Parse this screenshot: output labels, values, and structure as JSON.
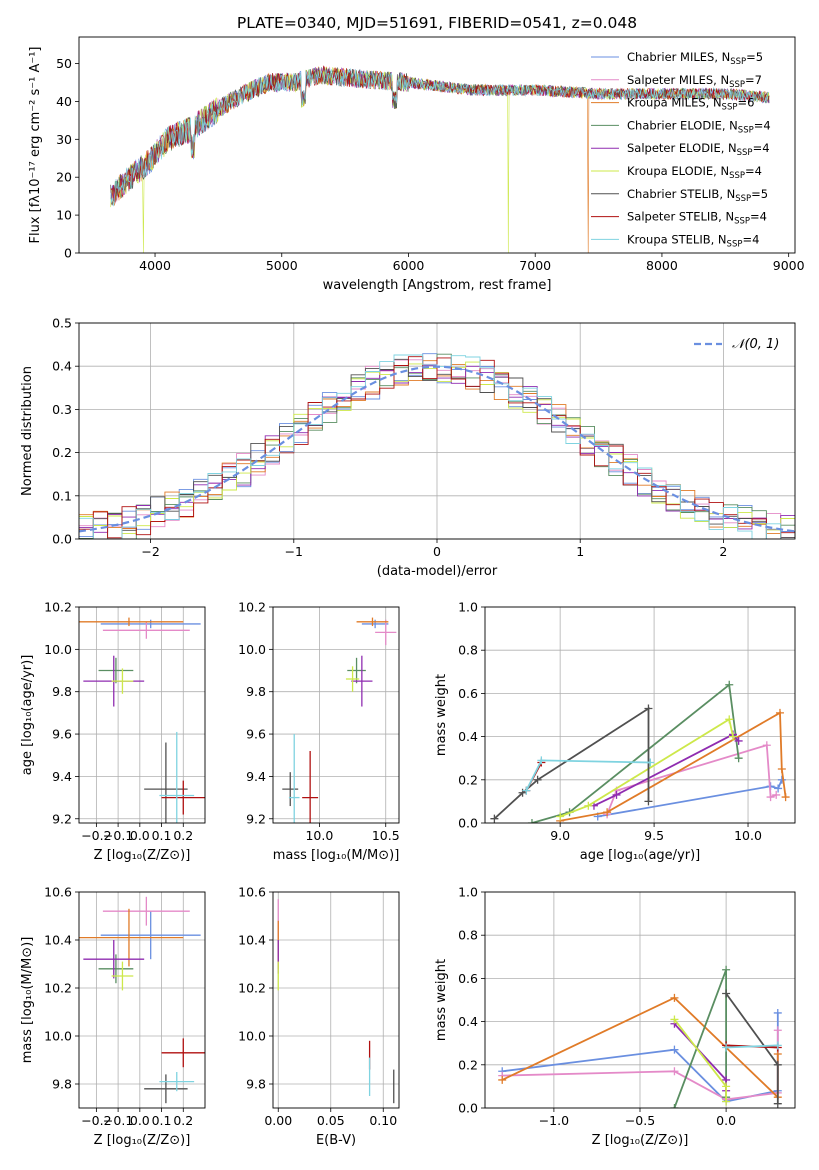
{
  "figure_title": "PLATE=0340, MJD=51691, FIBERID=0541, z=0.048",
  "colors": {
    "chabrier_miles": "#6a8fe0",
    "salpeter_miles": "#e48ac8",
    "kroupa_miles": "#e07b28",
    "chabrier_elodie": "#5a8e62",
    "salpeter_elodie": "#8f2cb0",
    "kroupa_elodie": "#cde84a",
    "chabrier_stelib": "#505050",
    "salpeter_stelib": "#b01010",
    "kroupa_stelib": "#7fd3e0"
  },
  "legend_spectrum": {
    "entries": [
      {
        "pre": "Chabrier MILES, N",
        "sub": "SSP",
        "post": "=5",
        "color_key": "chabrier_miles"
      },
      {
        "pre": "Salpeter MILES, N",
        "sub": "SSP",
        "post": "=7",
        "color_key": "salpeter_miles"
      },
      {
        "pre": "Kroupa MILES, N",
        "sub": "SSP",
        "post": "=6",
        "color_key": "kroupa_miles"
      },
      {
        "pre": "Chabrier ELODIE, N",
        "sub": "SSP",
        "post": "=4",
        "color_key": "chabrier_elodie"
      },
      {
        "pre": "Salpeter ELODIE, N",
        "sub": "SSP",
        "post": "=4",
        "color_key": "salpeter_elodie"
      },
      {
        "pre": "Kroupa ELODIE, N",
        "sub": "SSP",
        "post": "=4",
        "color_key": "kroupa_elodie"
      },
      {
        "pre": "Chabrier STELIB, N",
        "sub": "SSP",
        "post": "=5",
        "color_key": "chabrier_stelib"
      },
      {
        "pre": "Salpeter STELIB, N",
        "sub": "SSP",
        "post": "=4",
        "color_key": "salpeter_stelib"
      },
      {
        "pre": "Kroupa STELIB, N",
        "sub": "SSP",
        "post": "=4",
        "color_key": "kroupa_stelib"
      }
    ]
  },
  "legend_hist": {
    "label": "𝒩(0, 1)"
  },
  "chart_data": [
    {
      "id": "spectrum",
      "type": "line",
      "xlabel": "wavelength [Angstrom, rest frame]",
      "ylabel": "Flux [fλ10⁻¹⁷ erg cm⁻² s⁻¹ A⁻¹]",
      "xlim": [
        3400,
        9050
      ],
      "ylim": [
        0,
        57
      ],
      "xticks": [
        4000,
        5000,
        6000,
        7000,
        8000,
        9000
      ],
      "yticks": [
        0,
        10,
        20,
        30,
        40,
        50
      ],
      "grid": false,
      "legend": "right",
      "data_range": [
        3650,
        8850
      ],
      "continuum_wavelength": [
        3650,
        3800,
        3950,
        4100,
        4300,
        4500,
        4700,
        4900,
        5100,
        5300,
        5600,
        6000,
        6500,
        7000,
        7500,
        8000,
        8500,
        8850
      ],
      "continuum_flux": [
        15,
        20,
        24,
        30,
        33,
        38,
        42,
        45,
        45,
        47,
        46,
        45,
        43,
        43,
        42,
        42,
        42,
        41
      ],
      "spikes": [
        {
          "series": "kroupa_elodie",
          "wavelength": 3910,
          "flux": 0
        },
        {
          "series": "kroupa_elodie",
          "wavelength": 6790,
          "flux": 0
        },
        {
          "series": "kroupa_miles",
          "wavelength": 7420,
          "flux": 0
        }
      ]
    },
    {
      "id": "residuals",
      "type": "line",
      "xlabel": "(data-model)/error",
      "ylabel": "Normed distribution",
      "xlim": [
        -2.5,
        2.5
      ],
      "ylim": [
        0,
        0.5
      ],
      "xticks": [
        -2,
        -1,
        0,
        1,
        2
      ],
      "yticks": [
        0.0,
        0.1,
        0.2,
        0.3,
        0.4,
        0.5
      ],
      "grid": true,
      "legend": "top-right",
      "bin_width": 0.1,
      "reference_curve": "normal(0,1)"
    },
    {
      "id": "age_vs_Z",
      "type": "scatter",
      "xlabel": "Z [log₁₀(Z/Z⊙)]",
      "ylabel": "age  [log₁₀(age/yr)]",
      "xlim": [
        -0.28,
        0.3
      ],
      "ylim": [
        9.18,
        10.2
      ],
      "xticks": [
        -0.2,
        -0.1,
        0.0,
        0.1,
        0.2
      ],
      "yticks": [
        9.2,
        9.4,
        9.6,
        9.8,
        10.0,
        10.2
      ],
      "grid": true,
      "points": [
        {
          "series": "chabrier_miles",
          "x": 0.05,
          "y": 10.12,
          "xerr": 0.23,
          "yerr": 0.02
        },
        {
          "series": "salpeter_miles",
          "x": 0.03,
          "y": 10.09,
          "xerr": 0.2,
          "yerr": 0.04
        },
        {
          "series": "kroupa_miles",
          "x": -0.05,
          "y": 10.13,
          "xerr": 0.25,
          "yerr": 0.02
        },
        {
          "series": "chabrier_elodie",
          "x": -0.11,
          "y": 9.9,
          "xerr": 0.08,
          "yerr": 0.06
        },
        {
          "series": "salpeter_elodie",
          "x": -0.12,
          "y": 9.85,
          "xerr": 0.14,
          "yerr": 0.12
        },
        {
          "series": "kroupa_elodie",
          "x": -0.08,
          "y": 9.85,
          "xerr": 0.05,
          "yerr": 0.06
        },
        {
          "series": "chabrier_stelib",
          "x": 0.12,
          "y": 9.34,
          "xerr": 0.1,
          "yerr": 0.22
        },
        {
          "series": "salpeter_stelib",
          "x": 0.2,
          "y": 9.3,
          "xerr": 0.1,
          "yerr": 0.08
        },
        {
          "series": "kroupa_stelib",
          "x": 0.17,
          "y": 9.31,
          "xerr": 0.08,
          "yerr": 0.3
        }
      ]
    },
    {
      "id": "age_vs_mass",
      "type": "scatter",
      "xlabel": "mass [log₁₀(M/M⊙)]",
      "ylabel": "",
      "xlim": [
        9.65,
        10.6
      ],
      "ylim": [
        9.18,
        10.2
      ],
      "xticks": [
        10.0,
        10.5
      ],
      "yticks": [
        9.2,
        9.4,
        9.6,
        9.8,
        10.0,
        10.2
      ],
      "grid": true,
      "points": [
        {
          "series": "chabrier_miles",
          "x": 10.42,
          "y": 10.12,
          "xerr": 0.1,
          "yerr": 0.02
        },
        {
          "series": "salpeter_miles",
          "x": 10.5,
          "y": 10.08,
          "xerr": 0.08,
          "yerr": 0.06
        },
        {
          "series": "kroupa_miles",
          "x": 10.4,
          "y": 10.13,
          "xerr": 0.12,
          "yerr": 0.02
        },
        {
          "series": "chabrier_elodie",
          "x": 10.28,
          "y": 9.9,
          "xerr": 0.07,
          "yerr": 0.06
        },
        {
          "series": "salpeter_elodie",
          "x": 10.32,
          "y": 9.85,
          "xerr": 0.08,
          "yerr": 0.12
        },
        {
          "series": "kroupa_elodie",
          "x": 10.25,
          "y": 9.86,
          "xerr": 0.05,
          "yerr": 0.06
        },
        {
          "series": "chabrier_stelib",
          "x": 9.78,
          "y": 9.34,
          "xerr": 0.06,
          "yerr": 0.08
        },
        {
          "series": "salpeter_stelib",
          "x": 9.93,
          "y": 9.3,
          "xerr": 0.06,
          "yerr": 0.22
        },
        {
          "series": "kroupa_stelib",
          "x": 9.81,
          "y": 9.3,
          "xerr": 0.04,
          "yerr": 0.3
        }
      ]
    },
    {
      "id": "weight_vs_age",
      "type": "line",
      "xlabel": "age  [log₁₀(age/yr)]",
      "ylabel": "mass weight",
      "xlim": [
        8.6,
        10.25
      ],
      "ylim": [
        0,
        1
      ],
      "xticks": [
        9.0,
        9.5,
        10.0
      ],
      "yticks": [
        0.0,
        0.2,
        0.4,
        0.6,
        0.8,
        1.0
      ],
      "grid": true,
      "series": [
        {
          "key": "chabrier_miles",
          "x": [
            9.2,
            10.12,
            10.16,
            10.18
          ],
          "y": [
            0.03,
            0.17,
            0.16,
            0.2
          ]
        },
        {
          "key": "salpeter_miles",
          "x": [
            9.25,
            9.3,
            10.1,
            10.12,
            10.15
          ],
          "y": [
            0.04,
            0.15,
            0.36,
            0.12,
            0.13
          ]
        },
        {
          "key": "kroupa_miles",
          "x": [
            9.0,
            9.25,
            10.17,
            10.18,
            10.2
          ],
          "y": [
            0.01,
            0.05,
            0.51,
            0.25,
            0.12
          ]
        },
        {
          "key": "chabrier_elodie",
          "x": [
            8.85,
            9.05,
            9.9,
            9.95
          ],
          "y": [
            0.0,
            0.05,
            0.64,
            0.3
          ]
        },
        {
          "key": "salpeter_elodie",
          "x": [
            9.18,
            9.3,
            9.92,
            9.95
          ],
          "y": [
            0.08,
            0.13,
            0.41,
            0.38
          ]
        },
        {
          "key": "kroupa_elodie",
          "x": [
            9.0,
            9.15,
            9.9,
            9.92
          ],
          "y": [
            0.03,
            0.08,
            0.48,
            0.4
          ]
        },
        {
          "key": "chabrier_stelib",
          "x": [
            8.65,
            8.8,
            8.88,
            9.47,
            9.47
          ],
          "y": [
            0.02,
            0.14,
            0.2,
            0.53,
            0.1
          ]
        },
        {
          "key": "salpeter_stelib",
          "x": [
            8.82,
            8.9
          ],
          "y": [
            0.15,
            0.28
          ]
        },
        {
          "key": "kroupa_stelib",
          "x": [
            8.82,
            8.9,
            9.48
          ],
          "y": [
            0.15,
            0.29,
            0.28
          ]
        }
      ]
    },
    {
      "id": "mass_vs_Z",
      "type": "scatter",
      "xlabel": "Z [log₁₀(Z/Z⊙)]",
      "ylabel": "mass [log₁₀(M/M⊙)]",
      "xlim": [
        -0.28,
        0.3
      ],
      "ylim": [
        9.7,
        10.6
      ],
      "xticks": [
        -0.2,
        -0.1,
        0.0,
        0.1,
        0.2
      ],
      "yticks": [
        9.8,
        10.0,
        10.2,
        10.4,
        10.6
      ],
      "grid": true,
      "points": [
        {
          "series": "chabrier_miles",
          "x": 0.05,
          "y": 10.42,
          "xerr": 0.23,
          "yerr": 0.1
        },
        {
          "series": "salpeter_miles",
          "x": 0.03,
          "y": 10.52,
          "xerr": 0.2,
          "yerr": 0.06
        },
        {
          "series": "kroupa_miles",
          "x": -0.05,
          "y": 10.41,
          "xerr": 0.25,
          "yerr": 0.12
        },
        {
          "series": "chabrier_elodie",
          "x": -0.11,
          "y": 10.28,
          "xerr": 0.08,
          "yerr": 0.06
        },
        {
          "series": "salpeter_elodie",
          "x": -0.12,
          "y": 10.32,
          "xerr": 0.14,
          "yerr": 0.08
        },
        {
          "series": "kroupa_elodie",
          "x": -0.08,
          "y": 10.25,
          "xerr": 0.05,
          "yerr": 0.06
        },
        {
          "series": "chabrier_stelib",
          "x": 0.12,
          "y": 9.78,
          "xerr": 0.1,
          "yerr": 0.06
        },
        {
          "series": "salpeter_stelib",
          "x": 0.2,
          "y": 9.93,
          "xerr": 0.1,
          "yerr": 0.06
        },
        {
          "series": "kroupa_stelib",
          "x": 0.17,
          "y": 9.81,
          "xerr": 0.08,
          "yerr": 0.04
        }
      ]
    },
    {
      "id": "mass_vs_ebv",
      "type": "scatter",
      "xlabel": "E(B-V)",
      "ylabel": "",
      "xlim": [
        -0.005,
        0.115
      ],
      "ylim": [
        9.7,
        10.6
      ],
      "xticks": [
        0.0,
        0.05,
        0.1
      ],
      "yticks": [
        9.8,
        10.0,
        10.2,
        10.4,
        10.6
      ],
      "grid": true,
      "points": [
        {
          "series": "salpeter_miles",
          "x": 0.0,
          "y": 10.45,
          "xerr": 0,
          "yerr": 0.12
        },
        {
          "series": "kroupa_miles",
          "x": 0.0,
          "y": 10.38,
          "xerr": 0,
          "yerr": 0.1
        },
        {
          "series": "salpeter_elodie",
          "x": 0.0,
          "y": 10.33,
          "xerr": 0,
          "yerr": 0.07
        },
        {
          "series": "kroupa_elodie",
          "x": 0.0,
          "y": 10.25,
          "xerr": 0,
          "yerr": 0.06
        },
        {
          "series": "salpeter_stelib",
          "x": 0.087,
          "y": 9.92,
          "xerr": 0,
          "yerr": 0.06
        },
        {
          "series": "kroupa_stelib",
          "x": 0.087,
          "y": 9.83,
          "xerr": 0,
          "yerr": 0.08
        },
        {
          "series": "chabrier_stelib",
          "x": 0.11,
          "y": 9.79,
          "xerr": 0,
          "yerr": 0.07
        }
      ]
    },
    {
      "id": "weight_vs_Z",
      "type": "line",
      "xlabel": "Z [log₁₀(Z/Z⊙)]",
      "ylabel": "mass weight",
      "xlim": [
        -1.4,
        0.4
      ],
      "ylim": [
        0,
        1
      ],
      "xticks": [
        -1.0,
        -0.5,
        0.0
      ],
      "yticks": [
        0.0,
        0.2,
        0.4,
        0.6,
        0.8,
        1.0
      ],
      "grid": true,
      "series": [
        {
          "key": "chabrier_miles",
          "x": [
            -1.3,
            -0.3,
            0.0,
            0.3,
            0.3
          ],
          "y": [
            0.17,
            0.27,
            0.03,
            0.08,
            0.44
          ]
        },
        {
          "key": "salpeter_miles",
          "x": [
            -1.3,
            -0.3,
            0.0,
            0.3,
            0.3
          ],
          "y": [
            0.15,
            0.17,
            0.04,
            0.07,
            0.36
          ]
        },
        {
          "key": "kroupa_miles",
          "x": [
            -1.3,
            -0.3,
            0.3,
            0.3
          ],
          "y": [
            0.13,
            0.51,
            0.05,
            0.25
          ]
        },
        {
          "key": "chabrier_elodie",
          "x": [
            -0.3,
            0.0,
            0.0
          ],
          "y": [
            0.0,
            0.64,
            0.05
          ]
        },
        {
          "key": "salpeter_elodie",
          "x": [
            -0.3,
            0.0,
            0.0
          ],
          "y": [
            0.39,
            0.13,
            0.08
          ]
        },
        {
          "key": "kroupa_elodie",
          "x": [
            -0.3,
            0.0,
            0.0
          ],
          "y": [
            0.41,
            0.1,
            0.03
          ]
        },
        {
          "key": "chabrier_stelib",
          "x": [
            0.0,
            0.3,
            0.3
          ],
          "y": [
            0.53,
            0.2,
            0.02
          ]
        },
        {
          "key": "salpeter_stelib",
          "x": [
            0.0,
            0.3
          ],
          "y": [
            0.29,
            0.28
          ]
        },
        {
          "key": "kroupa_stelib",
          "x": [
            0.0,
            0.3
          ],
          "y": [
            0.28,
            0.29
          ]
        }
      ]
    }
  ]
}
